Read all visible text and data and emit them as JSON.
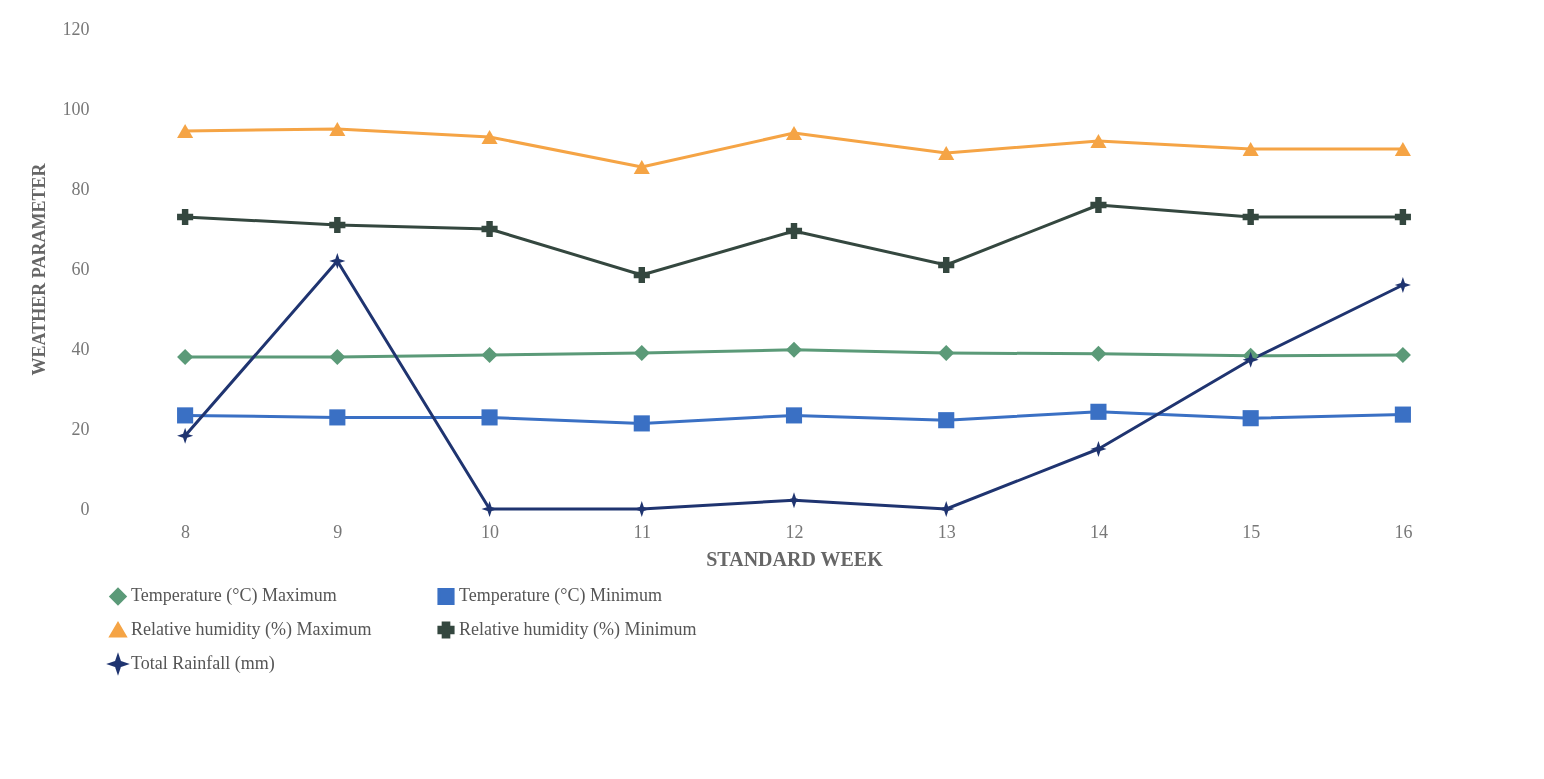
{
  "chart_data": {
    "type": "line",
    "xlabel": "STANDARD WEEK",
    "ylabel": "WEATHER PARAMETER",
    "categories": [
      "8",
      "9",
      "10",
      "11",
      "12",
      "13",
      "14",
      "15",
      "16"
    ],
    "ylim": [
      0,
      120
    ],
    "yticks": [
      0,
      20,
      40,
      60,
      80,
      100,
      120
    ],
    "legend": "bottom",
    "series": [
      {
        "name": "Temperature (°C) Maximum",
        "color": "#5b9a78",
        "marker": "diamond",
        "values": [
          38,
          38,
          38.5,
          39,
          39.8,
          39,
          38.8,
          38.3,
          38.5
        ]
      },
      {
        "name": "Temperature (°C) Minimum",
        "color": "#3a70c4",
        "marker": "square",
        "values": [
          23.4,
          22.9,
          22.9,
          21.4,
          23.4,
          22.2,
          24.3,
          22.7,
          23.6
        ]
      },
      {
        "name": "Relative humidity (%) Maximum",
        "color": "#f5a445",
        "marker": "triangle",
        "values": [
          94.5,
          95,
          93,
          85.5,
          94,
          89,
          92,
          90,
          90
        ]
      },
      {
        "name": "Relative humidity (%) Minimum",
        "color": "#34473f",
        "marker": "cross",
        "values": [
          73,
          71,
          70,
          58.5,
          69.5,
          61,
          76,
          73,
          73
        ]
      },
      {
        "name": "Total Rainfall (mm)",
        "color": "#1f3470",
        "marker": "star",
        "values": [
          18.3,
          62,
          0,
          0,
          2.2,
          0,
          15,
          37.3,
          56
        ]
      }
    ]
  }
}
